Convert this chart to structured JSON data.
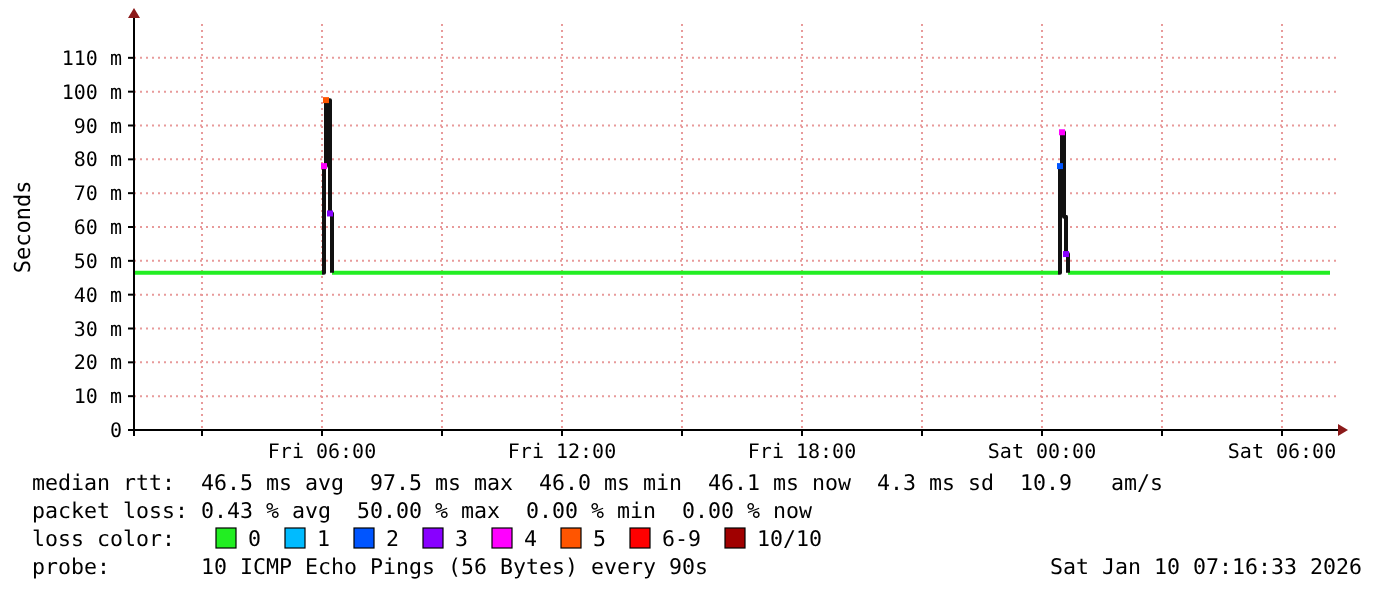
{
  "chart_data": {
    "type": "step",
    "ylabel": "Seconds",
    "x": [
      "2026-01-09T01:18",
      "2026-01-09T02:00",
      "2026-01-09T03:00",
      "2026-01-09T04:00",
      "2026-01-09T05:00",
      "2026-01-09T06:00",
      "2026-01-09T06:03",
      "2026-01-09T06:06",
      "2026-01-09T06:09",
      "2026-01-09T06:12",
      "2026-01-09T06:15",
      "2026-01-09T07:00",
      "2026-01-09T08:00",
      "2026-01-09T09:00",
      "2026-01-09T10:00",
      "2026-01-09T11:00",
      "2026-01-09T12:00",
      "2026-01-09T13:00",
      "2026-01-09T14:00",
      "2026-01-09T15:00",
      "2026-01-09T16:00",
      "2026-01-09T17:00",
      "2026-01-09T18:00",
      "2026-01-09T19:00",
      "2026-01-09T20:00",
      "2026-01-09T21:00",
      "2026-01-09T22:00",
      "2026-01-09T23:00",
      "2026-01-10T00:00",
      "2026-01-10T00:24",
      "2026-01-10T00:27",
      "2026-01-10T00:30",
      "2026-01-10T00:33",
      "2026-01-10T00:36",
      "2026-01-10T00:39",
      "2026-01-10T01:00",
      "2026-01-10T02:00",
      "2026-01-10T03:00",
      "2026-01-10T04:00",
      "2026-01-10T05:00",
      "2026-01-10T06:00",
      "2026-01-10T07:00",
      "2026-01-10T07:12"
    ],
    "xlim": [
      "2026-01-09T01:18",
      "2026-01-10T07:15"
    ],
    "xticks": [
      {
        "value": "2026-01-09T03:00",
        "label": null
      },
      {
        "value": "2026-01-09T06:00",
        "label": "Fri 06:00"
      },
      {
        "value": "2026-01-09T09:00",
        "label": null
      },
      {
        "value": "2026-01-09T12:00",
        "label": "Fri 12:00"
      },
      {
        "value": "2026-01-09T15:00",
        "label": null
      },
      {
        "value": "2026-01-09T18:00",
        "label": "Fri 18:00"
      },
      {
        "value": "2026-01-09T21:00",
        "label": null
      },
      {
        "value": "2026-01-10T00:00",
        "label": "Sat 00:00"
      },
      {
        "value": "2026-01-10T03:00",
        "label": null
      },
      {
        "value": "2026-01-10T06:00",
        "label": "Sat 06:00"
      }
    ],
    "ylim": [
      0,
      120
    ],
    "yticks": [
      {
        "value": 0,
        "label": "0"
      },
      {
        "value": 10,
        "label": "10 m"
      },
      {
        "value": 20,
        "label": "20 m"
      },
      {
        "value": 30,
        "label": "30 m"
      },
      {
        "value": 40,
        "label": "40 m"
      },
      {
        "value": 50,
        "label": "50 m"
      },
      {
        "value": 60,
        "label": "60 m"
      },
      {
        "value": 70,
        "label": "70 m"
      },
      {
        "value": 80,
        "label": "80 m"
      },
      {
        "value": 90,
        "label": "90 m"
      },
      {
        "value": 100,
        "label": "100 m"
      },
      {
        "value": 110,
        "label": "110 m"
      }
    ],
    "grid": true,
    "legend": "bottom",
    "legend_title": "loss color:",
    "series": [
      {
        "name": "0",
        "color": "#22ee22",
        "values": [
          46.5,
          46.5,
          46.5,
          46.5,
          46.5,
          46.5,
          null,
          null,
          null,
          null,
          46.5,
          46.5,
          46.5,
          46.5,
          46.5,
          46.5,
          46.5,
          46.5,
          46.5,
          46.5,
          46.5,
          46.5,
          46.5,
          46.5,
          46.5,
          46.5,
          46.5,
          46.5,
          46.5,
          46.5,
          null,
          null,
          null,
          null,
          46.5,
          46.5,
          46.5,
          46.5,
          46.5,
          46.5,
          46.5,
          46.5,
          46.5
        ]
      },
      {
        "color": "#111111",
        "values": [
          null,
          null,
          null,
          null,
          null,
          46.5,
          78,
          97.5,
          97.5,
          64,
          46.5,
          null,
          null,
          null,
          null,
          null,
          null,
          null,
          null,
          null,
          null,
          null,
          null,
          null,
          null,
          null,
          null,
          null,
          null,
          46.5,
          78,
          88,
          63,
          52,
          46.5,
          null,
          null,
          null,
          null,
          null,
          null,
          null,
          null
        ]
      },
      {
        "name": "1",
        "type": "scatter",
        "marker": "square",
        "color": "#00bbff",
        "values": [
          null,
          null,
          null,
          null,
          null,
          null,
          null,
          null,
          null,
          null,
          null,
          null,
          null,
          null,
          null,
          null,
          null,
          null,
          null,
          null,
          null,
          null,
          null,
          null,
          null,
          null,
          null,
          null,
          null,
          null,
          null,
          null,
          null,
          null,
          null,
          null,
          null,
          null,
          null,
          null,
          null,
          null,
          null
        ]
      },
      {
        "name": "2",
        "type": "scatter",
        "marker": "square",
        "color": "#0055ff",
        "values": [
          null,
          null,
          null,
          null,
          null,
          null,
          null,
          null,
          null,
          null,
          null,
          null,
          null,
          null,
          null,
          null,
          null,
          null,
          null,
          null,
          null,
          null,
          null,
          null,
          null,
          null,
          null,
          null,
          null,
          null,
          78,
          null,
          null,
          null,
          null,
          null,
          null,
          null,
          null,
          null,
          null,
          null,
          null
        ]
      },
      {
        "name": "3",
        "type": "scatter",
        "marker": "square",
        "color": "#8800ff",
        "values": [
          null,
          null,
          null,
          null,
          null,
          null,
          null,
          null,
          null,
          64,
          null,
          null,
          null,
          null,
          null,
          null,
          null,
          null,
          null,
          null,
          null,
          null,
          null,
          null,
          null,
          null,
          null,
          null,
          null,
          null,
          null,
          null,
          null,
          52,
          null,
          null,
          null,
          null,
          null,
          null,
          null,
          null,
          null
        ]
      },
      {
        "name": "4",
        "type": "scatter",
        "marker": "square",
        "color": "#ff00ff",
        "values": [
          null,
          null,
          null,
          null,
          null,
          null,
          78,
          null,
          null,
          null,
          null,
          null,
          null,
          null,
          null,
          null,
          null,
          null,
          null,
          null,
          null,
          null,
          null,
          null,
          null,
          null,
          null,
          null,
          null,
          null,
          null,
          88,
          null,
          null,
          null,
          null,
          null,
          null,
          null,
          null,
          null,
          null,
          null
        ]
      },
      {
        "name": "5",
        "type": "scatter",
        "marker": "square",
        "color": "#ff5500",
        "values": [
          null,
          null,
          null,
          null,
          null,
          null,
          null,
          97.5,
          null,
          null,
          null,
          null,
          null,
          null,
          null,
          null,
          null,
          null,
          null,
          null,
          null,
          null,
          null,
          null,
          null,
          null,
          null,
          null,
          null,
          null,
          null,
          null,
          null,
          null,
          null,
          null,
          null,
          null,
          null,
          null,
          null,
          null,
          null
        ]
      },
      {
        "name": "6-9",
        "type": "scatter",
        "marker": "square",
        "color": "#ff0000",
        "values": [
          null,
          null,
          null,
          null,
          null,
          null,
          null,
          null,
          null,
          null,
          null,
          null,
          null,
          null,
          null,
          null,
          null,
          null,
          null,
          null,
          null,
          null,
          null,
          null,
          null,
          null,
          null,
          null,
          null,
          null,
          null,
          null,
          null,
          null,
          null,
          null,
          null,
          null,
          null,
          null,
          null,
          null,
          null
        ]
      },
      {
        "name": "10/10",
        "type": "scatter",
        "marker": "square",
        "color": "#a00000",
        "values": [
          null,
          null,
          null,
          null,
          null,
          null,
          null,
          null,
          null,
          null,
          null,
          null,
          null,
          null,
          null,
          null,
          null,
          null,
          null,
          null,
          null,
          null,
          null,
          null,
          null,
          null,
          null,
          null,
          null,
          null,
          null,
          null,
          null,
          null,
          null,
          null,
          null,
          null,
          null,
          null,
          null,
          null,
          null
        ]
      }
    ],
    "annotations": [
      "median rtt:  46.5 ms avg  97.5 ms max  46.0 ms min  46.1 ms now  4.3 ms sd  10.9   am/s",
      "packet loss: 0.43 % avg  50.00 % max  0.00 % min  0.00 % now",
      "probe:       10 ICMP Echo Pings (56 Bytes) every 90s",
      "Sat Jan 10 07:16:33 2026"
    ]
  }
}
